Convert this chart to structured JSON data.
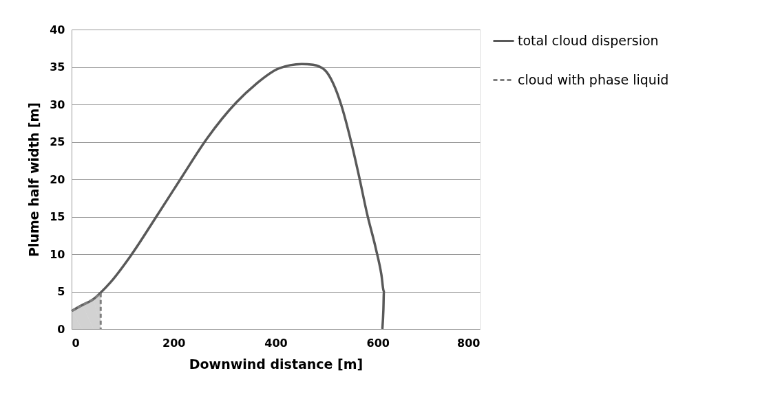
{
  "chart_data": {
    "type": "line",
    "xlabel": "Downwind distance [m]",
    "ylabel": "Plume half width [m]",
    "xlim": [
      0,
      800
    ],
    "xticks": [
      0,
      200,
      400,
      600,
      800
    ],
    "ylim": [
      0,
      40
    ],
    "yticks": [
      0,
      5,
      10,
      15,
      20,
      25,
      30,
      35,
      40
    ],
    "grid": "y",
    "legend": "right",
    "series": [
      {
        "name": "total cloud dispersion",
        "line_style": "solid",
        "color": "#595959",
        "x": [
          0,
          21,
          43,
          56,
          77,
          116,
          166,
          216,
          266,
          322,
          361,
          406,
          451,
          473,
          496,
          512,
          529,
          546,
          563,
          579,
          596,
          607,
          612,
          611,
          609
        ],
        "values": [
          2.4,
          3.2,
          4.0,
          4.8,
          6.3,
          9.8,
          15.0,
          20.3,
          25.5,
          30.2,
          32.7,
          34.8,
          35.4,
          35.3,
          34.6,
          32.9,
          29.8,
          25.5,
          20.5,
          15.4,
          10.8,
          7.3,
          5.0,
          2.6,
          0
        ]
      },
      {
        "name": "cloud with phase liquid",
        "type": "area",
        "line_style": "dashed",
        "color": "#7f7f7f",
        "x": [
          0,
          21,
          43,
          57,
          57
        ],
        "values": [
          2.4,
          3.2,
          4.0,
          4.8,
          0
        ]
      }
    ]
  }
}
